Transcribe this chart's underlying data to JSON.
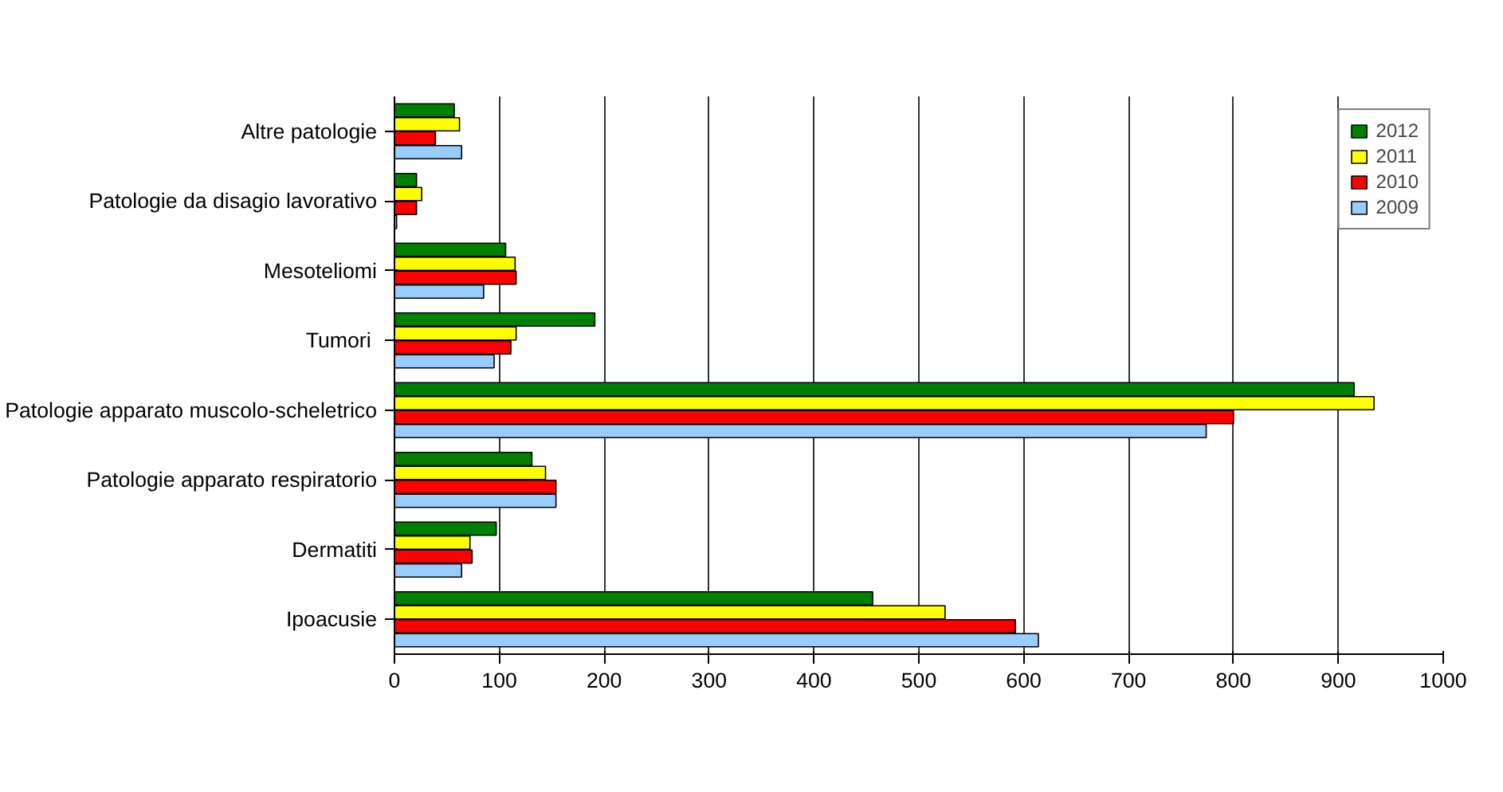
{
  "chart_data": {
    "type": "bar",
    "orientation": "horizontal",
    "categories": [
      "Altre patologie",
      "Patologie da disagio lavorativo",
      "Mesoteliomi",
      "Tumori ",
      "Patologie apparato muscolo-scheletrico",
      "Patologie apparato respiratorio",
      "Dermatiti",
      "Ipoacusie"
    ],
    "series": [
      {
        "name": "2012",
        "color": "#008000",
        "values": [
          57,
          21,
          106,
          191,
          915,
          131,
          97,
          456
        ]
      },
      {
        "name": "2011",
        "color": "#ffff00",
        "values": [
          62,
          26,
          115,
          116,
          934,
          144,
          72,
          525
        ]
      },
      {
        "name": "2010",
        "color": "#ff0000",
        "values": [
          39,
          21,
          116,
          111,
          800,
          154,
          74,
          592
        ]
      },
      {
        "name": "2009",
        "color": "#99ccff",
        "values": [
          64,
          2,
          85,
          95,
          774,
          154,
          64,
          614
        ]
      }
    ],
    "xlim": [
      0,
      1000
    ],
    "xticks": [
      0,
      100,
      200,
      300,
      400,
      500,
      600,
      700,
      800,
      900,
      1000
    ],
    "grid": "x",
    "legend": "top right"
  }
}
